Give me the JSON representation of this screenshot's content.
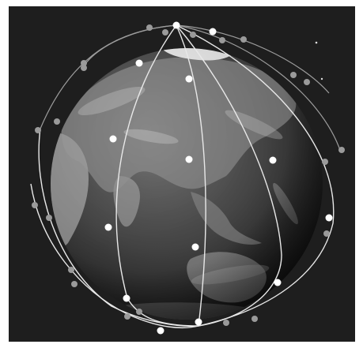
{
  "image": {
    "subject": "satellite-constellation-orbits-around-earth",
    "style": "grayscale",
    "colors": {
      "background": "#1e1e1e",
      "frame_outer": "#ffffff",
      "ocean": "#4a4a4a",
      "land": "#8a8a8a",
      "ice": "#f2f2f2",
      "orbit": "#e6e6e6",
      "satellite_front": "#ffffff",
      "satellite_back": "#9a9a9a"
    }
  },
  "satellites": {
    "orbit_count": 6,
    "front_count": 14,
    "back_count": 22
  }
}
